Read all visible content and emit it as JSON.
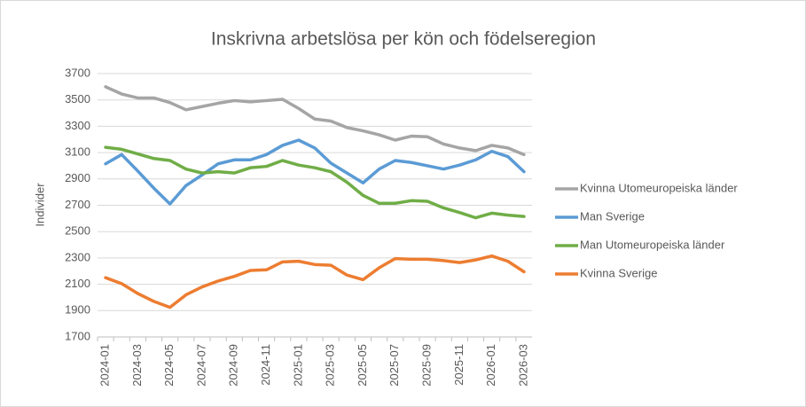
{
  "chart_data": {
    "type": "line",
    "title": "Inskrivna arbetslösa per kön och födelseregion",
    "y_label": "Individer",
    "categories": [
      "2024-01",
      null,
      "2024-03",
      null,
      "2024-05",
      null,
      "2024-07",
      null,
      "2024-09",
      null,
      "2024-11",
      null,
      "2025-01",
      null,
      "2025-03",
      null,
      "2025-05",
      null,
      "2025-07",
      null,
      "2025-09",
      null,
      "2025-11",
      null,
      "2026-01",
      null,
      "2026-03"
    ],
    "series": [
      {
        "name": "Kvinna Utomeuropeiska länder",
        "color": "#a5a5a5",
        "values": [
          3600,
          3545,
          3515,
          3515,
          3480,
          3425,
          3450,
          3475,
          3495,
          3485,
          3495,
          3505,
          3435,
          3355,
          3340,
          3290,
          3265,
          3235,
          3195,
          3225,
          3220,
          3165,
          3135,
          3115,
          3155,
          3135,
          3085
        ]
      },
      {
        "name": "Man Sverige",
        "color": "#5b9bd5",
        "values": [
          3015,
          3085,
          2960,
          2830,
          2710,
          2850,
          2930,
          3015,
          3045,
          3045,
          3085,
          3155,
          3195,
          3135,
          3020,
          2945,
          2870,
          2975,
          3040,
          3025,
          3000,
          2975,
          3005,
          3045,
          3110,
          3070,
          2955
        ]
      },
      {
        "name": "Man Utomeuropeiska länder",
        "color": "#70ad47",
        "values": [
          3140,
          3125,
          3090,
          3055,
          3040,
          2975,
          2945,
          2955,
          2945,
          2985,
          2995,
          3040,
          3005,
          2985,
          2955,
          2875,
          2775,
          2715,
          2715,
          2735,
          2730,
          2680,
          2645,
          2605,
          2640,
          2625,
          2615
        ]
      },
      {
        "name": "Kvinna Sverige",
        "color": "#ed7d31",
        "values": [
          2150,
          2105,
          2030,
          1970,
          1925,
          2020,
          2080,
          2125,
          2160,
          2205,
          2210,
          2270,
          2275,
          2250,
          2245,
          2170,
          2135,
          2225,
          2295,
          2290,
          2290,
          2280,
          2265,
          2285,
          2315,
          2275,
          2195
        ]
      }
    ],
    "ylim": [
      1700,
      3700
    ],
    "yticks": [
      1700,
      1900,
      2100,
      2300,
      2500,
      2700,
      2900,
      3100,
      3300,
      3500,
      3700
    ],
    "grid": true,
    "legend": "right"
  }
}
